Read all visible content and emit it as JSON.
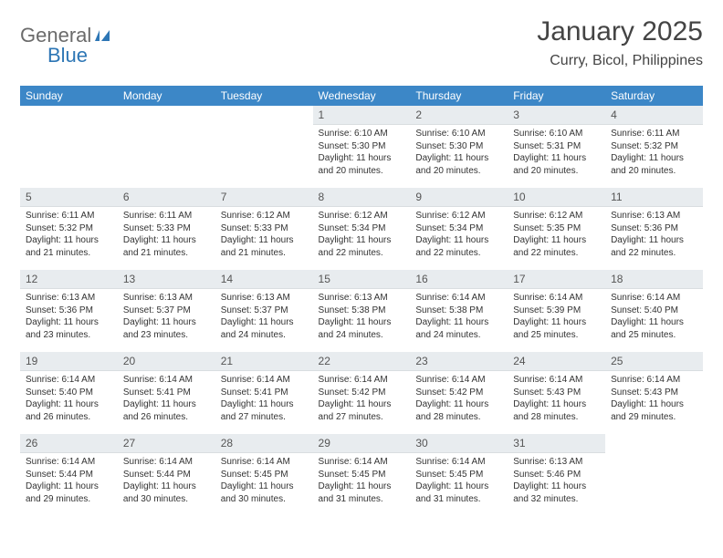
{
  "brand": {
    "word1": "General",
    "word2": "Blue"
  },
  "title": "January 2025",
  "location": "Curry, Bicol, Philippines",
  "colors": {
    "header_bg": "#3c87c7",
    "header_text": "#ffffff",
    "daynum_bg": "#e8ecef",
    "text": "#333333",
    "title": "#444444",
    "logo_gray": "#6b6b6b",
    "logo_blue": "#2d76b5"
  },
  "day_headers": [
    "Sunday",
    "Monday",
    "Tuesday",
    "Wednesday",
    "Thursday",
    "Friday",
    "Saturday"
  ],
  "weeks": [
    [
      {
        "n": "",
        "sr": "",
        "ss": "",
        "dl": ""
      },
      {
        "n": "",
        "sr": "",
        "ss": "",
        "dl": ""
      },
      {
        "n": "",
        "sr": "",
        "ss": "",
        "dl": ""
      },
      {
        "n": "1",
        "sr": "Sunrise: 6:10 AM",
        "ss": "Sunset: 5:30 PM",
        "dl": "Daylight: 11 hours and 20 minutes."
      },
      {
        "n": "2",
        "sr": "Sunrise: 6:10 AM",
        "ss": "Sunset: 5:30 PM",
        "dl": "Daylight: 11 hours and 20 minutes."
      },
      {
        "n": "3",
        "sr": "Sunrise: 6:10 AM",
        "ss": "Sunset: 5:31 PM",
        "dl": "Daylight: 11 hours and 20 minutes."
      },
      {
        "n": "4",
        "sr": "Sunrise: 6:11 AM",
        "ss": "Sunset: 5:32 PM",
        "dl": "Daylight: 11 hours and 20 minutes."
      }
    ],
    [
      {
        "n": "5",
        "sr": "Sunrise: 6:11 AM",
        "ss": "Sunset: 5:32 PM",
        "dl": "Daylight: 11 hours and 21 minutes."
      },
      {
        "n": "6",
        "sr": "Sunrise: 6:11 AM",
        "ss": "Sunset: 5:33 PM",
        "dl": "Daylight: 11 hours and 21 minutes."
      },
      {
        "n": "7",
        "sr": "Sunrise: 6:12 AM",
        "ss": "Sunset: 5:33 PM",
        "dl": "Daylight: 11 hours and 21 minutes."
      },
      {
        "n": "8",
        "sr": "Sunrise: 6:12 AM",
        "ss": "Sunset: 5:34 PM",
        "dl": "Daylight: 11 hours and 22 minutes."
      },
      {
        "n": "9",
        "sr": "Sunrise: 6:12 AM",
        "ss": "Sunset: 5:34 PM",
        "dl": "Daylight: 11 hours and 22 minutes."
      },
      {
        "n": "10",
        "sr": "Sunrise: 6:12 AM",
        "ss": "Sunset: 5:35 PM",
        "dl": "Daylight: 11 hours and 22 minutes."
      },
      {
        "n": "11",
        "sr": "Sunrise: 6:13 AM",
        "ss": "Sunset: 5:36 PM",
        "dl": "Daylight: 11 hours and 22 minutes."
      }
    ],
    [
      {
        "n": "12",
        "sr": "Sunrise: 6:13 AM",
        "ss": "Sunset: 5:36 PM",
        "dl": "Daylight: 11 hours and 23 minutes."
      },
      {
        "n": "13",
        "sr": "Sunrise: 6:13 AM",
        "ss": "Sunset: 5:37 PM",
        "dl": "Daylight: 11 hours and 23 minutes."
      },
      {
        "n": "14",
        "sr": "Sunrise: 6:13 AM",
        "ss": "Sunset: 5:37 PM",
        "dl": "Daylight: 11 hours and 24 minutes."
      },
      {
        "n": "15",
        "sr": "Sunrise: 6:13 AM",
        "ss": "Sunset: 5:38 PM",
        "dl": "Daylight: 11 hours and 24 minutes."
      },
      {
        "n": "16",
        "sr": "Sunrise: 6:14 AM",
        "ss": "Sunset: 5:38 PM",
        "dl": "Daylight: 11 hours and 24 minutes."
      },
      {
        "n": "17",
        "sr": "Sunrise: 6:14 AM",
        "ss": "Sunset: 5:39 PM",
        "dl": "Daylight: 11 hours and 25 minutes."
      },
      {
        "n": "18",
        "sr": "Sunrise: 6:14 AM",
        "ss": "Sunset: 5:40 PM",
        "dl": "Daylight: 11 hours and 25 minutes."
      }
    ],
    [
      {
        "n": "19",
        "sr": "Sunrise: 6:14 AM",
        "ss": "Sunset: 5:40 PM",
        "dl": "Daylight: 11 hours and 26 minutes."
      },
      {
        "n": "20",
        "sr": "Sunrise: 6:14 AM",
        "ss": "Sunset: 5:41 PM",
        "dl": "Daylight: 11 hours and 26 minutes."
      },
      {
        "n": "21",
        "sr": "Sunrise: 6:14 AM",
        "ss": "Sunset: 5:41 PM",
        "dl": "Daylight: 11 hours and 27 minutes."
      },
      {
        "n": "22",
        "sr": "Sunrise: 6:14 AM",
        "ss": "Sunset: 5:42 PM",
        "dl": "Daylight: 11 hours and 27 minutes."
      },
      {
        "n": "23",
        "sr": "Sunrise: 6:14 AM",
        "ss": "Sunset: 5:42 PM",
        "dl": "Daylight: 11 hours and 28 minutes."
      },
      {
        "n": "24",
        "sr": "Sunrise: 6:14 AM",
        "ss": "Sunset: 5:43 PM",
        "dl": "Daylight: 11 hours and 28 minutes."
      },
      {
        "n": "25",
        "sr": "Sunrise: 6:14 AM",
        "ss": "Sunset: 5:43 PM",
        "dl": "Daylight: 11 hours and 29 minutes."
      }
    ],
    [
      {
        "n": "26",
        "sr": "Sunrise: 6:14 AM",
        "ss": "Sunset: 5:44 PM",
        "dl": "Daylight: 11 hours and 29 minutes."
      },
      {
        "n": "27",
        "sr": "Sunrise: 6:14 AM",
        "ss": "Sunset: 5:44 PM",
        "dl": "Daylight: 11 hours and 30 minutes."
      },
      {
        "n": "28",
        "sr": "Sunrise: 6:14 AM",
        "ss": "Sunset: 5:45 PM",
        "dl": "Daylight: 11 hours and 30 minutes."
      },
      {
        "n": "29",
        "sr": "Sunrise: 6:14 AM",
        "ss": "Sunset: 5:45 PM",
        "dl": "Daylight: 11 hours and 31 minutes."
      },
      {
        "n": "30",
        "sr": "Sunrise: 6:14 AM",
        "ss": "Sunset: 5:45 PM",
        "dl": "Daylight: 11 hours and 31 minutes."
      },
      {
        "n": "31",
        "sr": "Sunrise: 6:13 AM",
        "ss": "Sunset: 5:46 PM",
        "dl": "Daylight: 11 hours and 32 minutes."
      },
      {
        "n": "",
        "sr": "",
        "ss": "",
        "dl": ""
      }
    ]
  ]
}
